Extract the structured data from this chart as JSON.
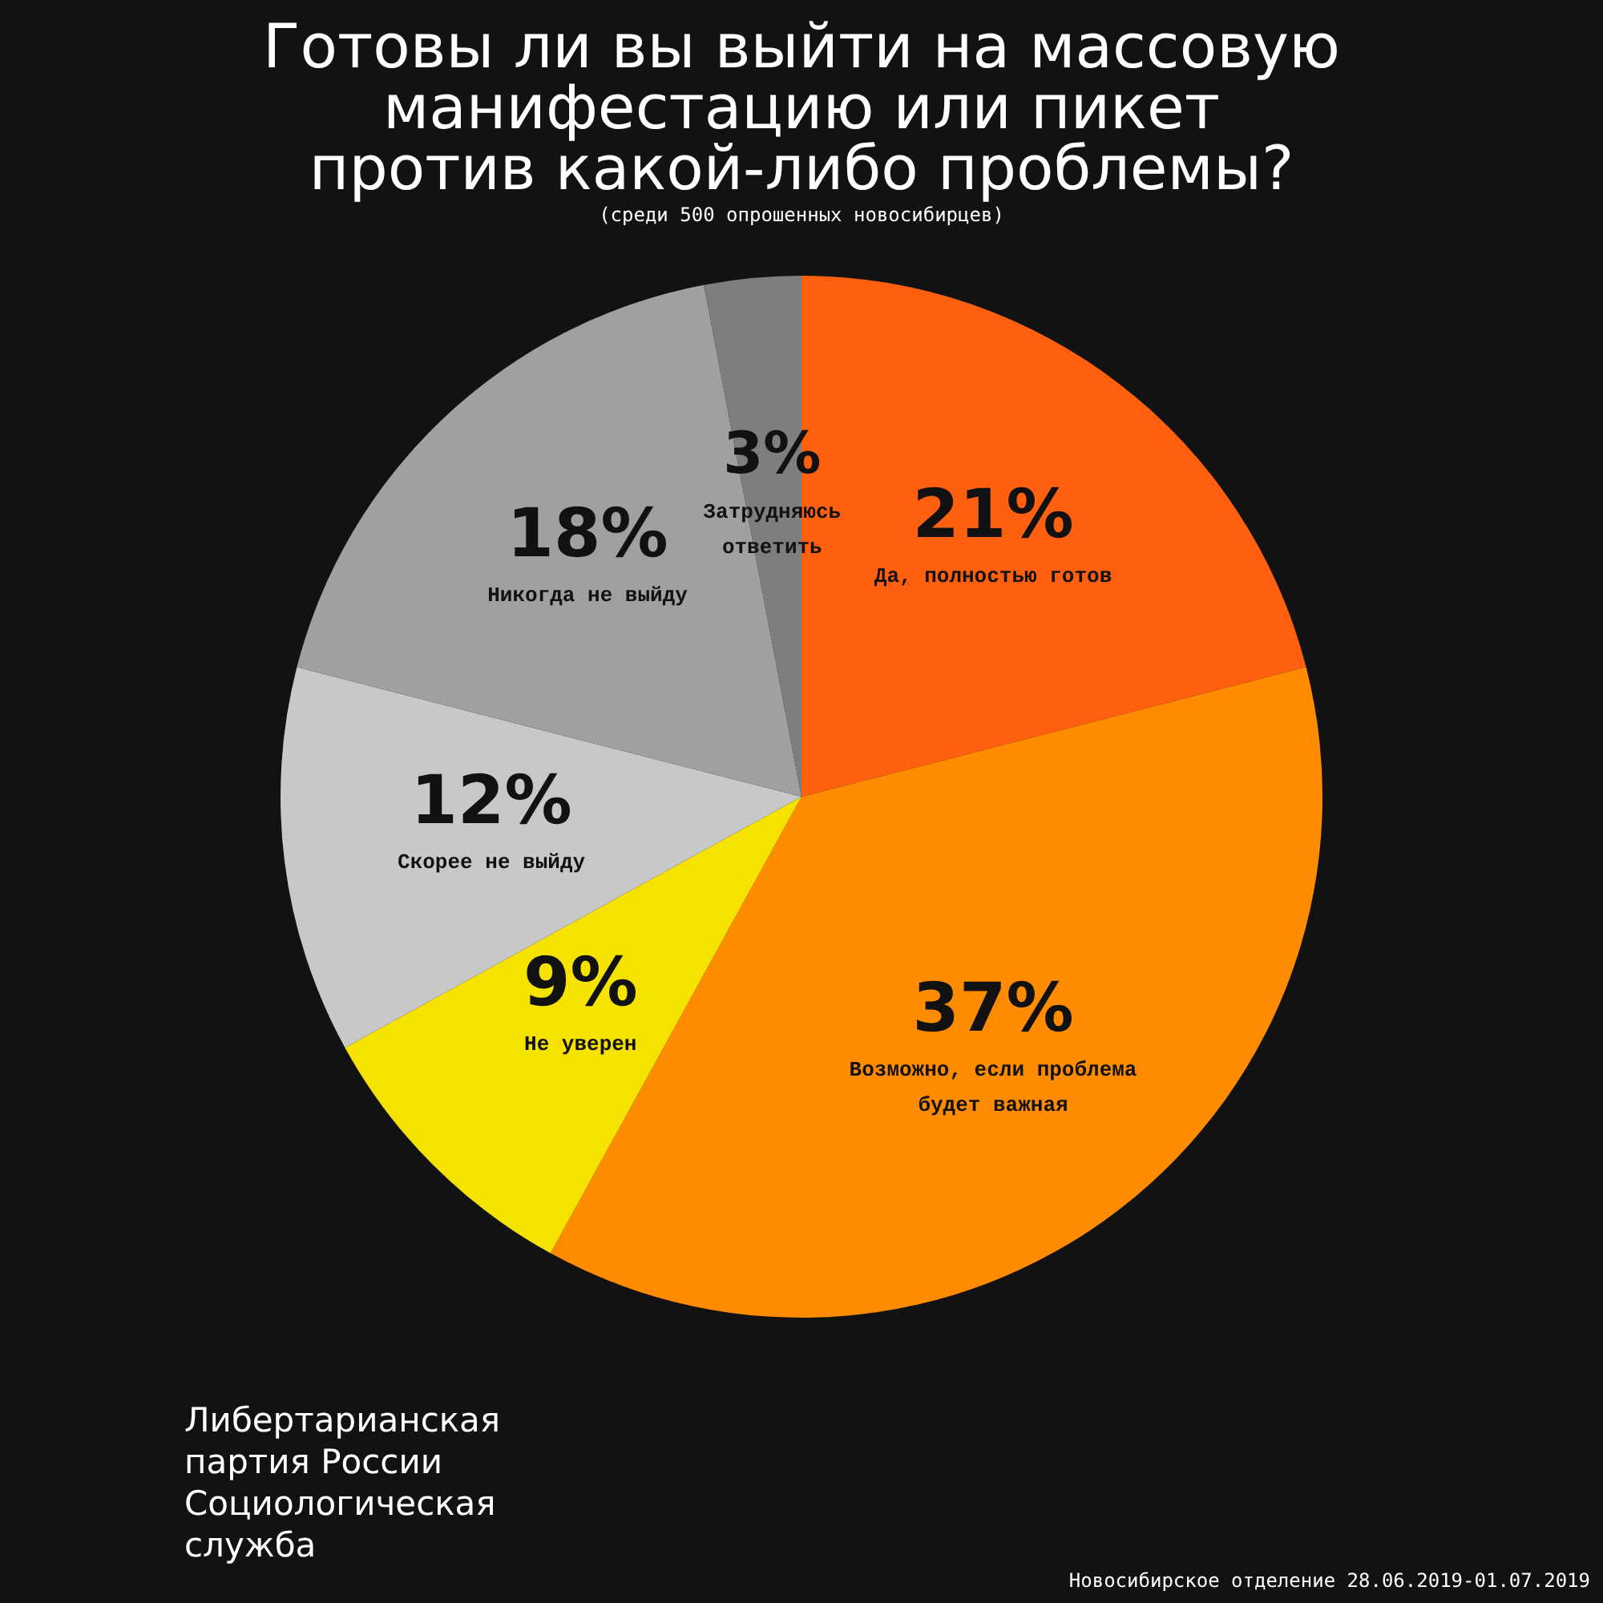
{
  "chart_data": {
    "type": "pie",
    "title": "Готовы ли вы выйти на массовую\nманифестацию или пикет\nпротив какой-либо проблемы?",
    "subtitle": "(среди 500 опрошенных новосибирцев)",
    "categories": [
      "Да, полностью готов",
      "Возможно, если проблема\nбудет важная",
      "Не уверен",
      "Скорее не выйду",
      "Никогда не выйду",
      "Затрудняюсь\nответить"
    ],
    "values": [
      21,
      37,
      9,
      12,
      18,
      3
    ],
    "colors": [
      "#ff6010",
      "#ff8c00",
      "#f5e200",
      "#c8c8c8",
      "#a0a0a0",
      "#7e7e7e"
    ],
    "value_labels": [
      "21%",
      "37%",
      "9%",
      "12%",
      "18%",
      "3%"
    ],
    "annotations": [
      "Либертарианская\nпартия России\nСоциологическая\nслужба",
      "Новосибирское отделение 28.06.2019-01.07.2019"
    ]
  }
}
